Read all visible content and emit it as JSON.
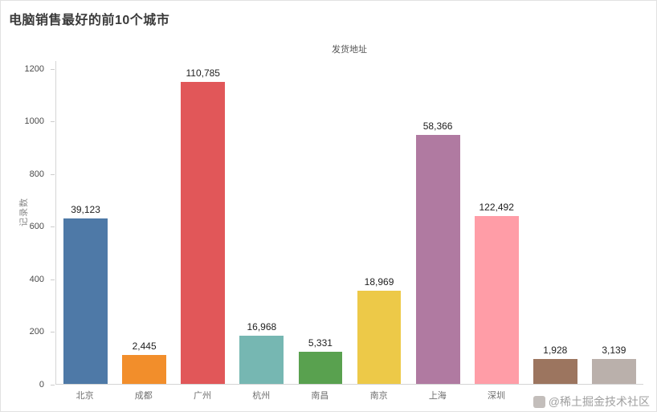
{
  "page": {
    "title": "电脑销售最好的前10个城市"
  },
  "watermark": {
    "text": "@稀土掘金技术社区"
  },
  "chart_data": {
    "type": "bar",
    "title": "发货地址",
    "xlabel": "",
    "ylabel": "记录数",
    "ylim": [
      0,
      1230
    ],
    "grid": false,
    "legend": "none",
    "yticks": [
      0,
      200,
      400,
      600,
      800,
      1000,
      1200
    ],
    "ytick_labels": [
      "0",
      "200",
      "400",
      "600",
      "800",
      "1000",
      "1200"
    ],
    "categories": [
      "北京",
      "成都",
      "广州",
      "杭州",
      "南昌",
      "南京",
      "上海",
      "深圳",
      "",
      ""
    ],
    "values": [
      630,
      110,
      1150,
      185,
      122,
      355,
      950,
      640,
      95,
      95
    ],
    "bar_labels": [
      "39,123",
      "2,445",
      "110,785",
      "16,968",
      "5,331",
      "18,969",
      "58,366",
      "122,492",
      "1,928",
      "3,139"
    ],
    "colors": [
      "#4e79a7",
      "#f28e2b",
      "#e15759",
      "#76b7b2",
      "#59a14f",
      "#edc948",
      "#b07aa1",
      "#ff9da7",
      "#9c755f",
      "#bab0ab"
    ]
  }
}
